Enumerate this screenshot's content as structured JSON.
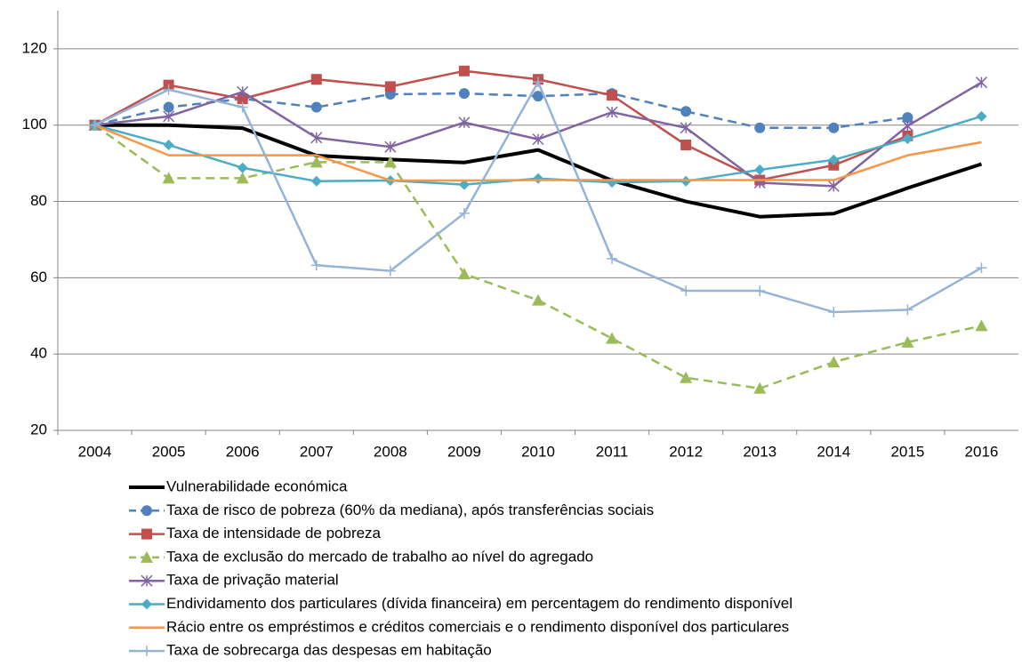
{
  "chart_data": {
    "type": "line",
    "categories": [
      "2004",
      "2005",
      "2006",
      "2007",
      "2008",
      "2009",
      "2010",
      "2011",
      "2012",
      "2013",
      "2014",
      "2015",
      "2016"
    ],
    "ylim": [
      20,
      130
    ],
    "yticks": [
      20,
      40,
      60,
      80,
      100,
      120
    ],
    "grid": true,
    "legend": "bottom",
    "series": [
      {
        "name": "Vulnerabilidade económica",
        "color": "#000000",
        "width": 4,
        "dash": false,
        "marker": "none",
        "values": [
          100,
          100,
          99.2,
          92,
          91,
          90.2,
          93.5,
          85.5,
          80,
          76,
          76.8,
          83.5,
          89.8
        ]
      },
      {
        "name": "Taxa de risco de pobreza (60% da mediana), após transferências sociais",
        "color": "#4f81bd",
        "width": 2.5,
        "dash": true,
        "marker": "circle",
        "values": [
          100,
          104.7,
          106.9,
          104.7,
          108.1,
          108.3,
          107.6,
          108.3,
          103.6,
          99.3,
          99.3,
          102,
          null
        ]
      },
      {
        "name": "Taxa de intensidade de pobreza",
        "color": "#c0504d",
        "width": 2.5,
        "dash": false,
        "marker": "square",
        "values": [
          100,
          110.5,
          106.9,
          112,
          110.1,
          114.2,
          112,
          107.8,
          94.8,
          85.6,
          89.5,
          97.2,
          null
        ]
      },
      {
        "name": "Taxa de exclusão do mercado de trabalho ao nível do agregado",
        "color": "#9bbb59",
        "width": 2.5,
        "dash": true,
        "marker": "triangle",
        "values": [
          100,
          86.1,
          86.1,
          90.3,
          90.3,
          61,
          54.1,
          44.1,
          33.8,
          31,
          37.9,
          43.1,
          47.4
        ]
      },
      {
        "name": "Taxa de privação material",
        "color": "#8064a2",
        "width": 2.5,
        "dash": false,
        "marker": "star",
        "values": [
          100,
          102.3,
          108.7,
          96.7,
          94.3,
          100.7,
          96.3,
          103.4,
          99.3,
          84.9,
          84,
          99.8,
          111.2
        ]
      },
      {
        "name": "Endividamento dos particulares (dívida financeira) em percentagem do rendimento disponível",
        "color": "#4bacc6",
        "width": 2.5,
        "dash": false,
        "marker": "diamond",
        "values": [
          100,
          94.8,
          88.8,
          85.3,
          85.5,
          84.4,
          86,
          85,
          85.3,
          88.3,
          90.9,
          96.4,
          102.3
        ]
      },
      {
        "name": "Rácio entre os empréstimos e créditos  comerciais e o rendimento disponível dos particulares",
        "color": "#f79646",
        "width": 2.5,
        "dash": false,
        "marker": "none",
        "values": [
          100,
          92.1,
          92.1,
          92.1,
          85.5,
          85.5,
          85.6,
          85.6,
          85.6,
          85.6,
          85.6,
          92.1,
          95.5
        ]
      },
      {
        "name": "Taxa de sobrecarga das despesas em habitação",
        "color": "#95b3d7",
        "width": 2.5,
        "dash": false,
        "marker": "plus",
        "values": [
          100,
          109.3,
          104.7,
          63.3,
          61.8,
          76.9,
          111.3,
          65,
          56.6,
          56.6,
          51,
          51.6,
          62.6
        ]
      }
    ]
  }
}
